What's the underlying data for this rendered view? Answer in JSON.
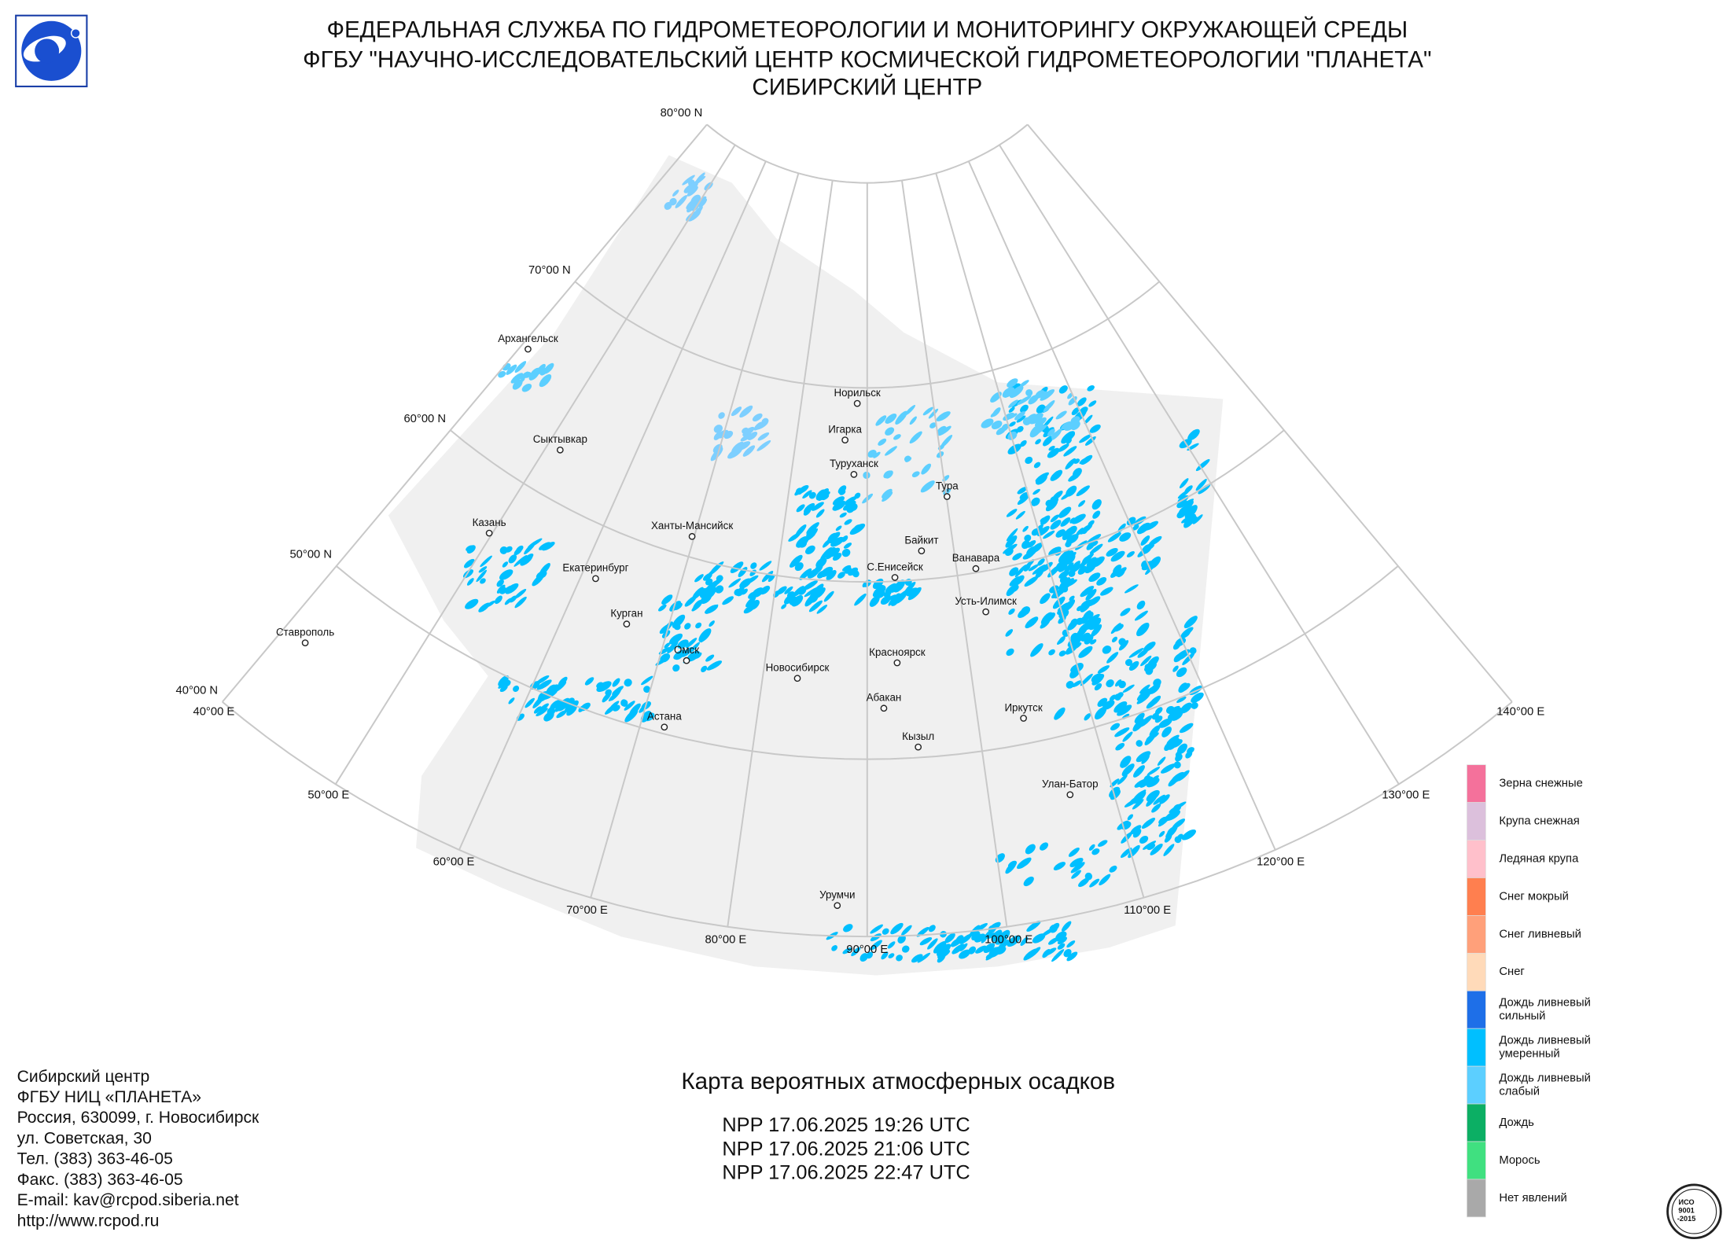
{
  "header": {
    "lines": [
      "ФЕДЕРАЛЬНАЯ СЛУЖБА ПО ГИДРОМЕТЕОРОЛОГИИ И МОНИТОРИНГУ ОКРУЖАЮЩЕЙ СРЕДЫ",
      "ФГБУ \"НАУЧНО-ИССЛЕДОВАТЕЛЬСКИЙ ЦЕНТР КОСМИЧЕСКОЙ ГИДРОМЕТЕОРОЛОГИИ \"ПЛАНЕТА\"",
      "СИБИРСКИЙ ЦЕНТР"
    ]
  },
  "map": {
    "lat_labels": [
      "80°00 N",
      "70°00 N",
      "60°00 N",
      "50°00 N",
      "40°00 N"
    ],
    "lon_labels": [
      "40°00 E",
      "50°00 E",
      "60°00 E",
      "70°00 E",
      "80°00 E",
      "90°00 E",
      "100°00 E",
      "110°00 E",
      "120°00 E",
      "130°00 E",
      "140°00 E"
    ],
    "cities": [
      "Архангельск",
      "Сыктывкар",
      "Казань",
      "Екатеринбург",
      "Курган",
      "Ставрополь",
      "Ханты-Мансийск",
      "Омск",
      "Астана",
      "Новосибирск",
      "Норильск",
      "Игарка",
      "Туруханск",
      "Тура",
      "Байкит",
      "Ванавара",
      "С.Енисейск",
      "Усть-Илимск",
      "Красноярск",
      "Абакан",
      "Кызыл",
      "Иркутск",
      "Улан-Батор",
      "Урумчи"
    ]
  },
  "legend": {
    "items": [
      {
        "lines": [
          "Зерна снежные"
        ],
        "color": "#f4719b"
      },
      {
        "lines": [
          "Крупа снежная"
        ],
        "color": "#dcc0dc"
      },
      {
        "lines": [
          "Ледяная крупа"
        ],
        "color": "#ffc0cb"
      },
      {
        "lines": [
          "Снег мокрый"
        ],
        "color": "#ff7f4f"
      },
      {
        "lines": [
          "Снег ливневый"
        ],
        "color": "#ffa07a"
      },
      {
        "lines": [
          "Снег"
        ],
        "color": "#ffdab9"
      },
      {
        "lines": [
          "Дождь ливневый",
          "сильный"
        ],
        "color": "#1e6fe8"
      },
      {
        "lines": [
          "Дождь ливневый",
          "умеренный"
        ],
        "color": "#00bfff"
      },
      {
        "lines": [
          "Дождь ливневый",
          "слабый"
        ],
        "color": "#5ccfff"
      },
      {
        "lines": [
          "Дождь"
        ],
        "color": "#0caf64"
      },
      {
        "lines": [
          "Морось"
        ],
        "color": "#40e080"
      },
      {
        "lines": [
          "Нет явлений"
        ],
        "color": "#a9a9a9"
      }
    ]
  },
  "contacts": [
    "Сибирский центр",
    "ФГБУ НИЦ «ПЛАНЕТА»",
    "Россия, 630099, г. Новосибирск",
    "ул. Советская, 30",
    "Тел. (383) 363-46-05",
    "Факс. (383) 363-46-05",
    "E-mail: kav@rcpod.siberia.net",
    "http://www.rcpod.ru"
  ],
  "map_title": "Карта вероятных атмосферных осадков",
  "passes": [
    "NPP 17.06.2025  19:26 UTC",
    "NPP 17.06.2025  21:06 UTC",
    "NPP 17.06.2025  22:47 UTC"
  ],
  "iso": [
    "ИСО",
    "9001",
    "-2015"
  ]
}
